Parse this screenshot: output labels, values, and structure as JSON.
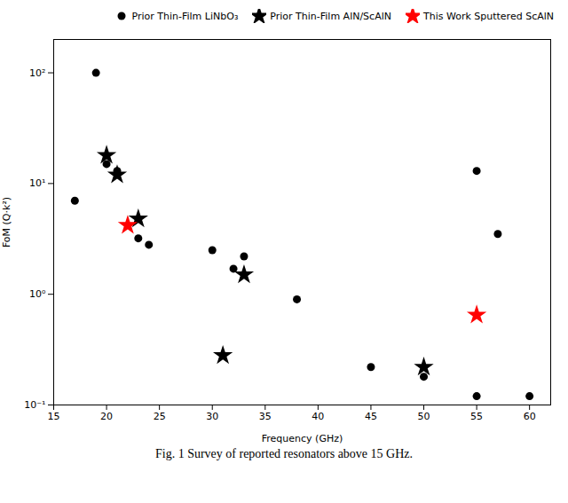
{
  "chart_data": {
    "type": "scatter",
    "caption": "Fig. 1  Survey of reported resonators above 15 GHz.",
    "xlabel": "Frequency (GHz)",
    "ylabel": "FoM (Q·k²)",
    "series": [
      {
        "name": "Prior Thin-Film LiNbO₃",
        "color": "black",
        "marker": "circle",
        "x": [
          17,
          19,
          20,
          21,
          23,
          24,
          30,
          32,
          33,
          38,
          45,
          50,
          55,
          55,
          57,
          60
        ],
        "values": [
          7,
          100,
          15,
          13,
          3.2,
          2.8,
          2.5,
          1.7,
          2.2,
          0.9,
          0.22,
          0.18,
          13,
          0.12,
          3.5,
          0.12
        ]
      },
      {
        "name": "Prior Thin-Film AlN/ScAlN",
        "color": "black",
        "marker": "star",
        "x": [
          20,
          21,
          23,
          31,
          33,
          50
        ],
        "values": [
          18,
          12,
          4.8,
          0.28,
          1.5,
          0.22
        ]
      },
      {
        "name": "This Work Sputtered ScAlN",
        "color": "red",
        "marker": "star",
        "x": [
          22,
          55
        ],
        "values": [
          4.2,
          0.65
        ]
      }
    ],
    "xlim": [
      15,
      62
    ],
    "xticks": [
      15,
      20,
      25,
      30,
      35,
      40,
      45,
      50,
      55,
      60
    ],
    "ylim": [
      0.1,
      200
    ],
    "yticks": [
      {
        "value": 0.1,
        "label": "10⁻¹"
      },
      {
        "value": 1,
        "label": "10⁰"
      },
      {
        "value": 10,
        "label": "10¹"
      },
      {
        "value": 100,
        "label": "10²"
      }
    ],
    "log": "y",
    "grid": false,
    "legend": "upper right"
  }
}
